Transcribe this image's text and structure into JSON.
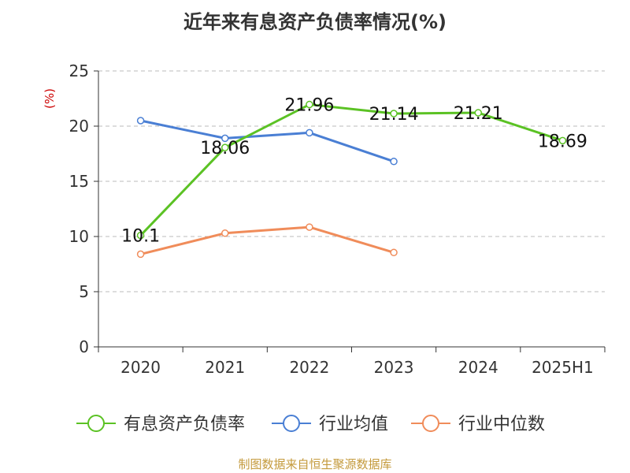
{
  "chart_data": {
    "type": "line",
    "title": "近年来有息资产负债率情况(%)",
    "ylabel": "(%)",
    "xlabel": "",
    "ylim": [
      0,
      25
    ],
    "yticks": [
      0,
      5,
      10,
      15,
      20,
      25
    ],
    "categories": [
      "2020",
      "2021",
      "2022",
      "2023",
      "2024",
      "2025H1"
    ],
    "grid": true,
    "legend_position": "bottom",
    "series": [
      {
        "name": "有息资产负债率",
        "color": "#5bc224",
        "values": [
          10.1,
          18.06,
          21.96,
          21.14,
          21.21,
          18.69
        ],
        "labels": [
          "10.1",
          "18.06",
          "21.96",
          "21.14",
          "21.21",
          "18.69"
        ]
      },
      {
        "name": "行业均值",
        "color": "#4a7fd4",
        "values": [
          20.5,
          18.9,
          19.4,
          16.8,
          null,
          null
        ],
        "labels": []
      },
      {
        "name": "行业中位数",
        "color": "#f08c5a",
        "values": [
          8.4,
          10.3,
          10.85,
          8.55,
          null,
          null
        ],
        "labels": []
      }
    ],
    "source": "制图数据来自恒生聚源数据库"
  }
}
